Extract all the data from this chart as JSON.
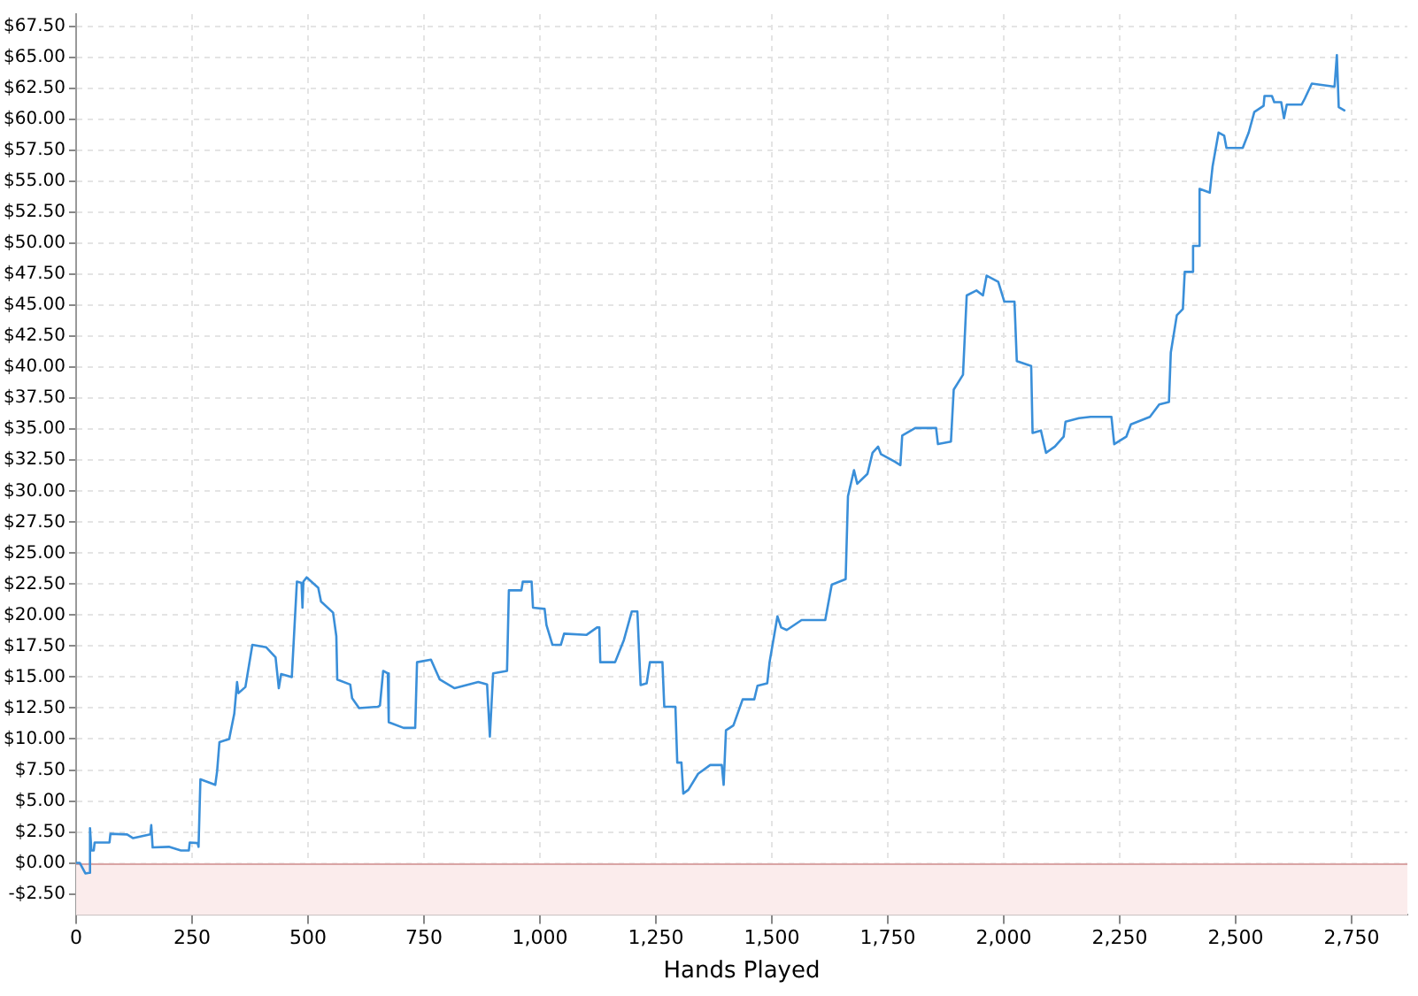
{
  "chart_data": {
    "type": "line",
    "xlabel": "Hands Played",
    "x": [
      0,
      8,
      20,
      28,
      30,
      33,
      38,
      40,
      72,
      74,
      110,
      123,
      160,
      162,
      165,
      200,
      226,
      243,
      245,
      262,
      264,
      268,
      300,
      304,
      309,
      330,
      341,
      347,
      350,
      365,
      380,
      410,
      430,
      437,
      442,
      465,
      476,
      486,
      488,
      490,
      497,
      522,
      528,
      554,
      561,
      563,
      591,
      595,
      610,
      650,
      655,
      662,
      672,
      674,
      706,
      731,
      735,
      765,
      784,
      816,
      867,
      886,
      892,
      899,
      929,
      933,
      960,
      963,
      982,
      985,
      1010,
      1014,
      1027,
      1045,
      1052,
      1100,
      1123,
      1128,
      1130,
      1162,
      1181,
      1198,
      1210,
      1217,
      1230,
      1237,
      1264,
      1268,
      1292,
      1296,
      1305,
      1309,
      1320,
      1341,
      1367,
      1392,
      1396,
      1401,
      1417,
      1437,
      1462,
      1469,
      1490,
      1495,
      1512,
      1520,
      1532,
      1564,
      1615,
      1629,
      1659,
      1664,
      1677,
      1684,
      1706,
      1717,
      1729,
      1735,
      1764,
      1777,
      1781,
      1809,
      1854,
      1858,
      1886,
      1892,
      1912,
      1920,
      1941,
      1955,
      1963,
      1988,
      2001,
      2023,
      2028,
      2059,
      2062,
      2080,
      2091,
      2110,
      2129,
      2133,
      2162,
      2187,
      2232,
      2238,
      2264,
      2274,
      2315,
      2335,
      2356,
      2360,
      2373,
      2386,
      2390,
      2405,
      2408,
      2421,
      2422,
      2444,
      2450,
      2463,
      2475,
      2480,
      2515,
      2528,
      2540,
      2560,
      2562,
      2578,
      2583,
      2598,
      2604,
      2610,
      2642,
      2649,
      2664,
      2713,
      2718,
      2722,
      2736
    ],
    "series": [
      {
        "color": "#3a8fd9",
        "values": [
          0,
          0,
          -0.85,
          -0.8,
          2.8,
          1.0,
          1.0,
          1.65,
          1.65,
          2.35,
          2.3,
          2.0,
          2.3,
          3.05,
          1.25,
          1.3,
          1.0,
          1.0,
          1.65,
          1.6,
          1.3,
          6.75,
          6.3,
          7.4,
          9.75,
          10.0,
          12.05,
          14.6,
          13.7,
          14.2,
          17.6,
          17.4,
          16.6,
          14.1,
          15.25,
          15.0,
          22.7,
          22.6,
          20.6,
          22.7,
          23.05,
          22.2,
          21.1,
          20.2,
          18.3,
          14.8,
          14.4,
          13.3,
          12.5,
          12.6,
          12.7,
          15.5,
          15.3,
          11.35,
          10.9,
          10.9,
          16.2,
          16.4,
          14.8,
          14.1,
          14.6,
          14.4,
          10.2,
          15.3,
          15.5,
          22.0,
          22.0,
          22.7,
          22.7,
          20.6,
          20.5,
          19.2,
          17.6,
          17.6,
          18.5,
          18.4,
          19.0,
          19.0,
          16.2,
          16.2,
          18.0,
          20.3,
          20.3,
          14.35,
          14.5,
          16.2,
          16.2,
          12.6,
          12.6,
          8.1,
          8.1,
          5.6,
          5.9,
          7.2,
          7.9,
          7.9,
          6.3,
          10.7,
          11.1,
          13.2,
          13.2,
          14.3,
          14.5,
          16.2,
          19.9,
          19.0,
          18.8,
          19.6,
          19.6,
          22.45,
          22.9,
          29.6,
          31.7,
          30.6,
          31.4,
          33.1,
          33.6,
          33.0,
          32.4,
          32.1,
          34.5,
          35.1,
          35.1,
          33.8,
          34.0,
          38.2,
          39.4,
          45.8,
          46.2,
          45.8,
          47.4,
          46.9,
          45.3,
          45.3,
          40.5,
          40.1,
          34.7,
          34.9,
          33.1,
          33.6,
          34.4,
          35.6,
          35.9,
          36.0,
          36.0,
          33.8,
          34.4,
          35.4,
          36.0,
          37.0,
          37.2,
          41.2,
          44.2,
          44.7,
          47.7,
          47.7,
          49.8,
          49.8,
          54.4,
          54.1,
          56.2,
          58.95,
          58.7,
          57.7,
          57.7,
          58.95,
          60.6,
          61.1,
          61.9,
          61.9,
          61.4,
          61.4,
          60.1,
          61.2,
          61.2,
          61.7,
          62.9,
          62.65,
          65.2,
          61.0,
          60.7
        ]
      }
    ],
    "xlim": [
      0,
      2870
    ],
    "ylim": [
      -4.2,
      68.5
    ],
    "xticks": [
      0,
      250,
      500,
      750,
      {
        "value": 1000,
        "label": "1,000"
      },
      {
        "value": 1250,
        "label": "1,250"
      },
      {
        "value": 1500,
        "label": "1,500"
      },
      {
        "value": 1750,
        "label": "1,750"
      },
      {
        "value": 2000,
        "label": "2,000"
      },
      {
        "value": 2250,
        "label": "2,250"
      },
      {
        "value": 2500,
        "label": "2,500"
      },
      {
        "value": 2750,
        "label": "2,750"
      }
    ],
    "yticks": [
      {
        "value": -2.5,
        "label": "-$2.50"
      },
      {
        "value": 0,
        "label": "$0.00"
      },
      {
        "value": 2.5,
        "label": "$2.50"
      },
      {
        "value": 5,
        "label": "$5.00"
      },
      {
        "value": 7.5,
        "label": "$7.50"
      },
      {
        "value": 10,
        "label": "$10.00"
      },
      {
        "value": 12.5,
        "label": "$12.50"
      },
      {
        "value": 15,
        "label": "$15.00"
      },
      {
        "value": 17.5,
        "label": "$17.50"
      },
      {
        "value": 20,
        "label": "$20.00"
      },
      {
        "value": 22.5,
        "label": "$22.50"
      },
      {
        "value": 25,
        "label": "$25.00"
      },
      {
        "value": 27.5,
        "label": "$27.50"
      },
      {
        "value": 30,
        "label": "$30.00"
      },
      {
        "value": 32.5,
        "label": "$32.50"
      },
      {
        "value": 35,
        "label": "$35.00"
      },
      {
        "value": 37.5,
        "label": "$37.50"
      },
      {
        "value": 40,
        "label": "$40.00"
      },
      {
        "value": 42.5,
        "label": "$42.50"
      },
      {
        "value": 45,
        "label": "$45.00"
      },
      {
        "value": 47.5,
        "label": "$47.50"
      },
      {
        "value": 50,
        "label": "$50.00"
      },
      {
        "value": 52.5,
        "label": "$52.50"
      },
      {
        "value": 55,
        "label": "$55.00"
      },
      {
        "value": 57.5,
        "label": "$57.50"
      },
      {
        "value": 60,
        "label": "$60.00"
      },
      {
        "value": 62.5,
        "label": "$62.50"
      },
      {
        "value": 65,
        "label": "$65.00"
      },
      {
        "value": 67.5,
        "label": "$67.50"
      }
    ],
    "bands": [
      {
        "axis": "y",
        "from": -4.2,
        "to": 0,
        "color": "#fbecec"
      }
    ],
    "ref_lines": [
      {
        "axis": "y",
        "value": 0,
        "color": "#d9a5a5"
      }
    ],
    "grid": true,
    "legend": false,
    "marker": "none",
    "line_style": "solid"
  }
}
